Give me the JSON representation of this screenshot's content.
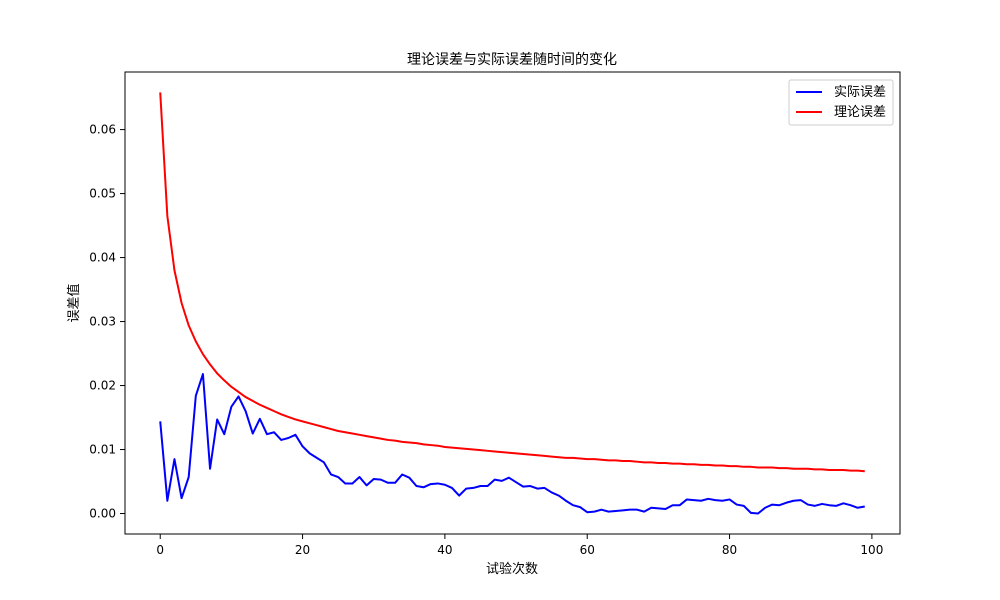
{
  "chart_data": {
    "type": "line",
    "title": "理论误差与实际误差随时间的变化",
    "xlabel": "试验次数",
    "ylabel": "误差值",
    "xlim": [
      -4.95,
      103.95
    ],
    "ylim": [
      -0.0032,
      0.069
    ],
    "xticks": [
      0,
      20,
      40,
      60,
      80,
      100
    ],
    "xtick_labels": [
      "0",
      "20",
      "40",
      "60",
      "80",
      "100"
    ],
    "yticks": [
      0.0,
      0.01,
      0.02,
      0.03,
      0.04,
      0.05,
      0.06
    ],
    "ytick_labels": [
      "0.00",
      "0.01",
      "0.02",
      "0.03",
      "0.04",
      "0.05",
      "0.06"
    ],
    "grid": false,
    "legend_position": "upper right",
    "x": [
      0,
      1,
      2,
      3,
      4,
      5,
      6,
      7,
      8,
      9,
      10,
      11,
      12,
      13,
      14,
      15,
      16,
      17,
      18,
      19,
      20,
      21,
      22,
      23,
      24,
      25,
      26,
      27,
      28,
      29,
      30,
      31,
      32,
      33,
      34,
      35,
      36,
      37,
      38,
      39,
      40,
      41,
      42,
      43,
      44,
      45,
      46,
      47,
      48,
      49,
      50,
      51,
      52,
      53,
      54,
      55,
      56,
      57,
      58,
      59,
      60,
      61,
      62,
      63,
      64,
      65,
      66,
      67,
      68,
      69,
      70,
      71,
      72,
      73,
      74,
      75,
      76,
      77,
      78,
      79,
      80,
      81,
      82,
      83,
      84,
      85,
      86,
      87,
      88,
      89,
      90,
      91,
      92,
      93,
      94,
      95,
      96,
      97,
      98,
      99
    ],
    "series": [
      {
        "name": "实际误差",
        "color": "#0000ff",
        "values": [
          0.0144,
          0.002,
          0.0085,
          0.0024,
          0.0057,
          0.0184,
          0.0218,
          0.007,
          0.0147,
          0.0124,
          0.0167,
          0.0183,
          0.016,
          0.0125,
          0.0148,
          0.0124,
          0.0127,
          0.0115,
          0.0118,
          0.0123,
          0.0105,
          0.0094,
          0.0087,
          0.008,
          0.0061,
          0.0057,
          0.0047,
          0.0047,
          0.0057,
          0.0044,
          0.0054,
          0.0053,
          0.0048,
          0.0048,
          0.0061,
          0.0056,
          0.0043,
          0.0041,
          0.0046,
          0.0047,
          0.0045,
          0.004,
          0.0028,
          0.0039,
          0.004,
          0.0043,
          0.0043,
          0.0053,
          0.0051,
          0.0056,
          0.0049,
          0.0042,
          0.0043,
          0.0039,
          0.004,
          0.0033,
          0.0028,
          0.002,
          0.0013,
          0.001,
          0.0002,
          0.0003,
          0.0006,
          0.0003,
          0.0004,
          0.0005,
          0.0006,
          0.0006,
          0.0003,
          0.0009,
          0.0008,
          0.0007,
          0.0013,
          0.0013,
          0.0022,
          0.0021,
          0.002,
          0.0023,
          0.0021,
          0.002,
          0.0022,
          0.0014,
          0.0012,
          0.0001,
          0.0,
          0.0009,
          0.0014,
          0.0013,
          0.0017,
          0.002,
          0.0021,
          0.0014,
          0.0012,
          0.0015,
          0.0013,
          0.0012,
          0.0016,
          0.0013,
          0.0009,
          0.0011
        ]
      },
      {
        "name": "理论误差",
        "color": "#ff0000",
        "values": [
          0.0658,
          0.0465,
          0.038,
          0.0329,
          0.0294,
          0.0269,
          0.0249,
          0.0233,
          0.0219,
          0.0208,
          0.0198,
          0.019,
          0.0182,
          0.0176,
          0.017,
          0.0165,
          0.016,
          0.0155,
          0.0151,
          0.0147,
          0.0144,
          0.0141,
          0.0138,
          0.0135,
          0.0132,
          0.0129,
          0.0127,
          0.0125,
          0.0123,
          0.0121,
          0.0119,
          0.0117,
          0.0115,
          0.0114,
          0.0112,
          0.0111,
          0.011,
          0.0108,
          0.0107,
          0.0106,
          0.0104,
          0.0103,
          0.0102,
          0.0101,
          0.01,
          0.0099,
          0.0098,
          0.0097,
          0.0096,
          0.0095,
          0.0094,
          0.0093,
          0.0092,
          0.0091,
          0.009,
          0.0089,
          0.0088,
          0.0087,
          0.0087,
          0.0086,
          0.0085,
          0.0085,
          0.0084,
          0.0083,
          0.0083,
          0.0082,
          0.0082,
          0.0081,
          0.008,
          0.008,
          0.0079,
          0.0079,
          0.0078,
          0.0078,
          0.0077,
          0.0077,
          0.0076,
          0.0076,
          0.0075,
          0.0075,
          0.0074,
          0.0074,
          0.0073,
          0.0073,
          0.0072,
          0.0072,
          0.0072,
          0.0071,
          0.0071,
          0.007,
          0.007,
          0.007,
          0.0069,
          0.0069,
          0.0068,
          0.0068,
          0.0068,
          0.0067,
          0.0067,
          0.0066
        ]
      }
    ]
  }
}
